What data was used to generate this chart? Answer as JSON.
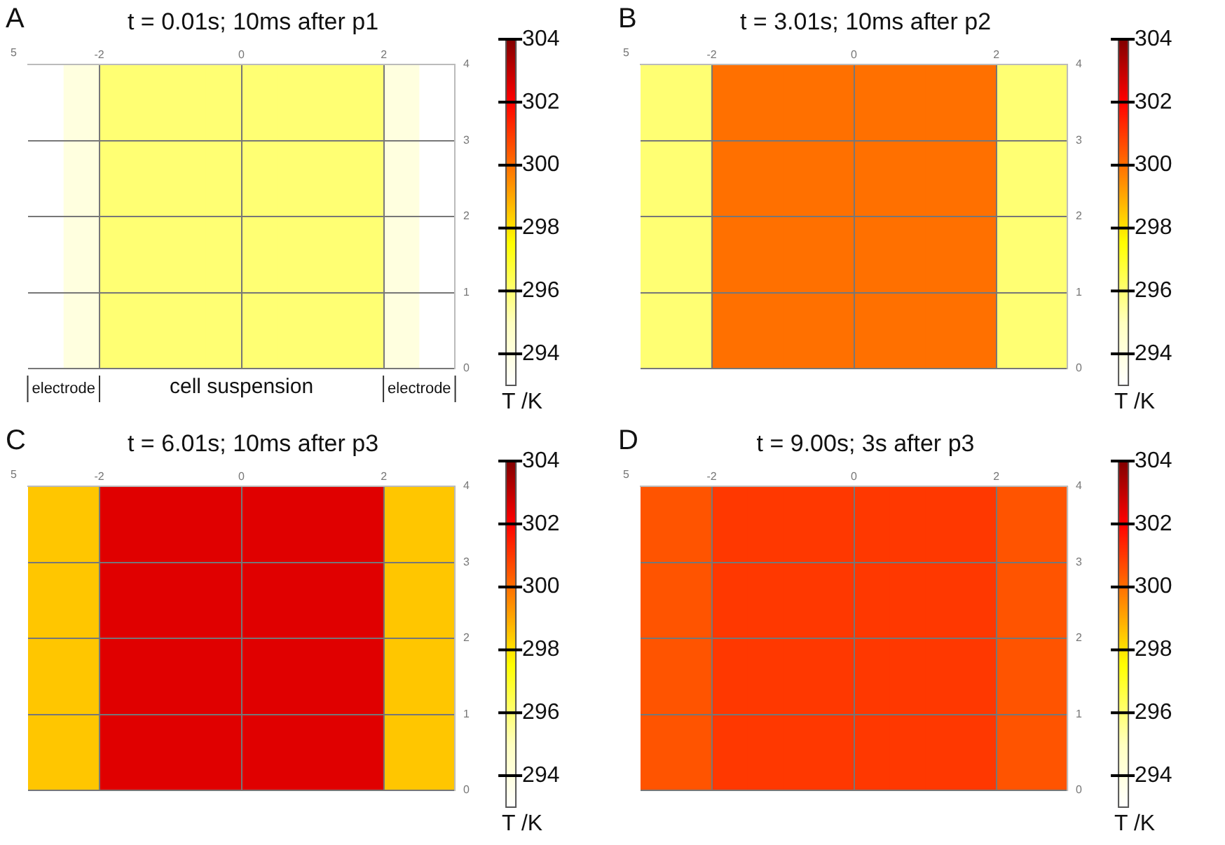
{
  "chart_data": [
    {
      "type": "heatmap",
      "title": "t = 0.01s; 10ms after p1",
      "annotations": [
        "A",
        "5",
        "electrode",
        "cell suspension",
        "electrode"
      ],
      "clabel": "T /K",
      "x": [
        -2.75,
        -2.25,
        -1.75,
        -1.25,
        -0.75,
        -0.25,
        0.25,
        0.75,
        1.25,
        1.75,
        2.25,
        2.75
      ],
      "cells": [
        [
          293,
          294,
          296,
          296,
          296,
          296,
          296,
          296,
          296,
          296,
          294,
          293
        ]
      ],
      "clim": [
        293,
        304
      ],
      "cticks": [
        294,
        296,
        298,
        300,
        302,
        304
      ],
      "xlim": [
        -3,
        3
      ],
      "xticks": [
        -2,
        0,
        2
      ],
      "ylim": [
        0,
        4
      ],
      "yticks": [
        0,
        1,
        2,
        3,
        4
      ],
      "grid": true
    },
    {
      "type": "heatmap",
      "title": "t = 3.01s; 10ms after p2",
      "annotations": [
        "B",
        "5"
      ],
      "clabel": "T /K",
      "x": [
        -2.75,
        -2.25,
        -1.75,
        -1.25,
        -0.75,
        -0.25,
        0.25,
        0.75,
        1.25,
        1.75,
        2.25,
        2.75
      ],
      "cells": [
        [
          296,
          296,
          300,
          300,
          300,
          300,
          300,
          300,
          300,
          300,
          296,
          296
        ]
      ],
      "clim": [
        293,
        304
      ],
      "cticks": [
        294,
        296,
        298,
        300,
        302,
        304
      ],
      "xlim": [
        -3,
        3
      ],
      "xticks": [
        -2,
        0,
        2
      ],
      "ylim": [
        0,
        4
      ],
      "yticks": [
        0,
        1,
        2,
        3,
        4
      ],
      "grid": true
    },
    {
      "type": "heatmap",
      "title": "t = 6.01s; 10ms after p3",
      "annotations": [
        "C",
        "5"
      ],
      "clabel": "T /K",
      "x": [
        -2.75,
        -2.25,
        -1.75,
        -1.25,
        -0.75,
        -0.25,
        0.25,
        0.75,
        1.25,
        1.75,
        2.25,
        2.75
      ],
      "cells": [
        [
          298.5,
          298.5,
          302.5,
          302.5,
          302.5,
          302.5,
          302.5,
          302.5,
          302.5,
          302.5,
          298.5,
          298.5
        ]
      ],
      "clim": [
        293,
        304
      ],
      "cticks": [
        294,
        296,
        298,
        300,
        302,
        304
      ],
      "xlim": [
        -3,
        3
      ],
      "xticks": [
        -2,
        0,
        2
      ],
      "ylim": [
        0,
        4
      ],
      "yticks": [
        0,
        1,
        2,
        3,
        4
      ],
      "grid": true
    },
    {
      "type": "heatmap",
      "title": "t = 9.00s; 3s after p3",
      "annotations": [
        "D",
        "5"
      ],
      "clabel": "T /K",
      "x": [
        -2.75,
        -2.25,
        -1.75,
        -1.25,
        -0.75,
        -0.25,
        0.25,
        0.75,
        1.25,
        1.75,
        2.25,
        2.75
      ],
      "cells": [
        [
          300.5,
          300.5,
          301,
          301,
          301,
          301,
          301,
          301,
          301,
          301,
          300.5,
          300.5
        ]
      ],
      "clim": [
        293,
        304
      ],
      "cticks": [
        294,
        296,
        298,
        300,
        302,
        304
      ],
      "xlim": [
        -3,
        3
      ],
      "xticks": [
        -2,
        0,
        2
      ],
      "ylim": [
        0,
        4
      ],
      "yticks": [
        0,
        1,
        2,
        3,
        4
      ],
      "grid": true
    }
  ]
}
